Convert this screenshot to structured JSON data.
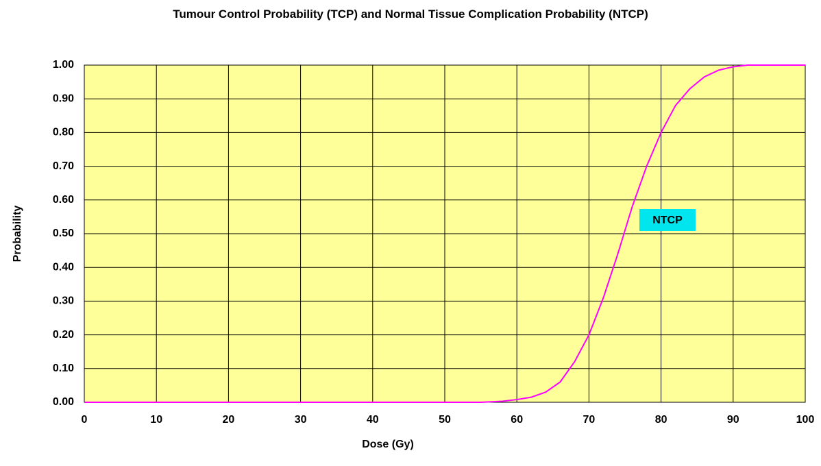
{
  "chart_data": {
    "type": "line",
    "title": "Tumour Control Probability (TCP) and Normal Tissue Complication Probability (NTCP)",
    "x_label": "Dose (Gy)",
    "y_label": "Probability",
    "x": [
      0,
      55,
      58,
      60,
      62,
      64,
      66,
      68,
      70,
      72,
      74,
      76,
      78,
      80,
      82,
      84,
      86,
      88,
      90,
      92,
      100
    ],
    "series": [
      {
        "name": "NTCP",
        "color": "#ff00ff",
        "values": [
          0,
          0,
          0.003,
          0.008,
          0.015,
          0.03,
          0.06,
          0.12,
          0.2,
          0.31,
          0.44,
          0.58,
          0.7,
          0.8,
          0.88,
          0.93,
          0.965,
          0.985,
          0.995,
          1,
          1
        ]
      }
    ],
    "annotations": [
      {
        "text": "NTCP"
      }
    ],
    "xlim": [
      0,
      100
    ],
    "xticks": [
      0,
      10,
      20,
      30,
      40,
      50,
      60,
      70,
      80,
      90,
      100
    ],
    "ylim": [
      0,
      1
    ],
    "yticks": [
      {
        "value": 0,
        "label": "0.00"
      },
      {
        "value": 0.1,
        "label": "0.10"
      },
      {
        "value": 0.2,
        "label": "0.20"
      },
      {
        "value": 0.3,
        "label": "0.30"
      },
      {
        "value": 0.4,
        "label": "0.40"
      },
      {
        "value": 0.5,
        "label": "0.50"
      },
      {
        "value": 0.6,
        "label": "0.60"
      },
      {
        "value": 0.7,
        "label": "0.70"
      },
      {
        "value": 0.8,
        "label": "0.80"
      },
      {
        "value": 0.9,
        "label": "0.90"
      },
      {
        "value": 1,
        "label": "1.00"
      }
    ],
    "grid": true,
    "plot_background": "#ffff99"
  }
}
